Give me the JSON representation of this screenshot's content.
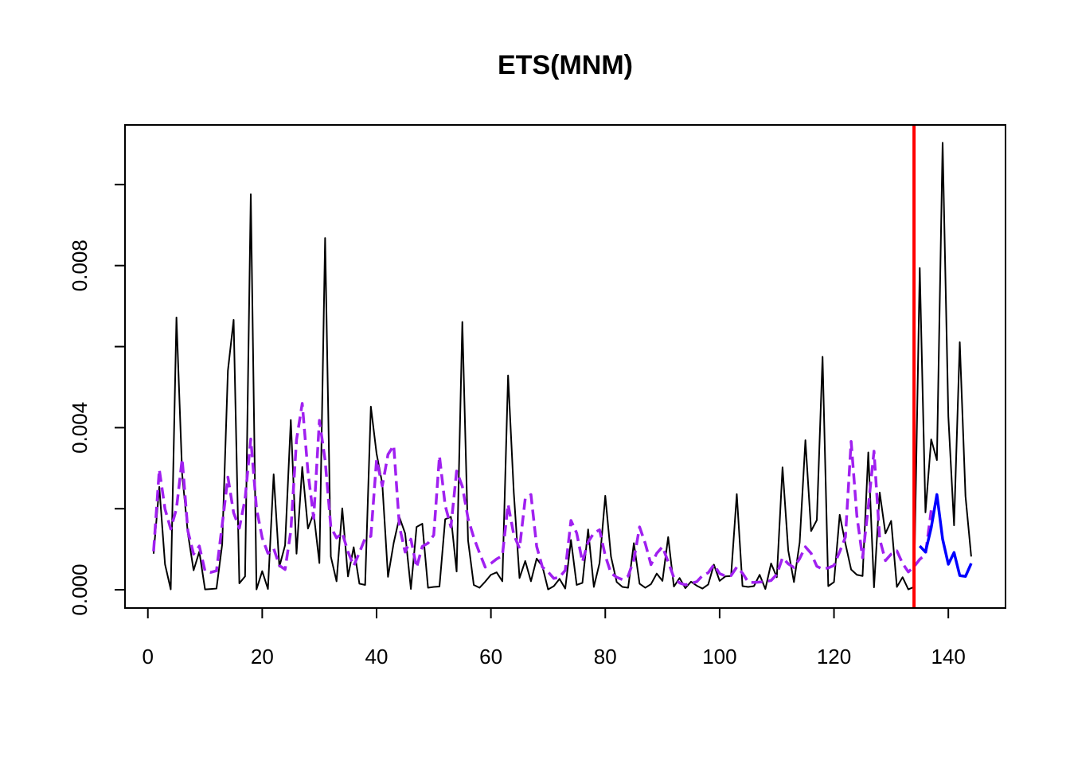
{
  "chart_data": {
    "type": "line",
    "title": "ETS(MNM)",
    "xlabel": "",
    "ylabel": "",
    "xlim": [
      -4,
      150
    ],
    "ylim": [
      -0.00045,
      0.01147
    ],
    "x_ticks": [
      0,
      20,
      40,
      60,
      80,
      100,
      120,
      140
    ],
    "x_tick_labels": [
      "0",
      "20",
      "40",
      "60",
      "80",
      "100",
      "120",
      "140"
    ],
    "y_ticks": [
      0,
      0.002,
      0.004,
      0.006,
      0.008,
      0.01
    ],
    "y_tick_labels": [
      "0.000",
      "",
      "0.004",
      "",
      "0.008",
      ""
    ],
    "grid": false,
    "legend": "none",
    "vline": {
      "x": 134,
      "color": "#ff0000"
    },
    "series": [
      {
        "role": "actuals",
        "color": "#000000",
        "style": "solid",
        "x_start": 1,
        "values": [
          0.00089,
          0.00254,
          0.00063,
          1e-05,
          0.00672,
          0.00285,
          0.00139,
          0.00048,
          0.00094,
          1e-05,
          2e-05,
          3e-05,
          0.00112,
          0.00541,
          0.00666,
          0.00016,
          0.00033,
          0.00976,
          1e-05,
          0.00046,
          2e-05,
          0.00285,
          0.00057,
          0.0011,
          0.00419,
          0.00089,
          0.00303,
          0.00151,
          0.00189,
          0.00066,
          0.00868,
          0.00082,
          0.00021,
          0.00201,
          0.00033,
          0.00105,
          0.00015,
          0.00012,
          0.00452,
          0.00336,
          0.00262,
          0.00032,
          0.00116,
          0.00179,
          0.00139,
          2e-05,
          0.00155,
          0.00163,
          5e-05,
          7e-05,
          8e-05,
          0.00174,
          0.0018,
          0.00045,
          0.00661,
          0.00122,
          0.00012,
          5e-05,
          0.0002,
          0.00037,
          0.00043,
          0.00021,
          0.00529,
          0.0024,
          0.00029,
          0.00071,
          0.00021,
          0.00077,
          0.00058,
          1e-05,
          9e-05,
          0.00027,
          3e-05,
          0.00123,
          0.00012,
          0.00017,
          0.00149,
          7e-05,
          0.00066,
          0.00232,
          0.00082,
          0.00019,
          7e-05,
          5e-05,
          0.00115,
          0.00015,
          5e-05,
          0.00014,
          0.0004,
          0.00022,
          0.0013,
          8e-05,
          0.00029,
          4e-05,
          0.0002,
          0.0001,
          3e-05,
          0.00013,
          0.00062,
          0.00022,
          0.00033,
          0.00034,
          0.00236,
          9e-05,
          7e-05,
          9e-05,
          0.00037,
          2e-05,
          0.00065,
          0.00031,
          0.00302,
          0.00097,
          0.00019,
          0.00117,
          0.00369,
          0.00145,
          0.00172,
          0.00575,
          9e-05,
          0.00019,
          0.00185,
          0.00114,
          0.0005,
          0.00037,
          0.00034,
          0.00339,
          6e-05,
          0.0024,
          0.00139,
          0.0017,
          7e-05,
          0.00031,
          1e-05,
          7e-05,
          0.00794,
          0.00191,
          0.00371,
          0.0032,
          0.01103,
          0.00428,
          0.00159,
          0.00611,
          0.00231,
          0.00082
        ]
      },
      {
        "role": "fitted",
        "color": "#a020f0",
        "style": "dashed",
        "x_start": 1,
        "values": [
          0.00095,
          0.00297,
          0.00199,
          0.0015,
          0.002,
          0.00323,
          0.00145,
          0.00088,
          0.00108,
          0.00046,
          0.00043,
          0.00047,
          0.0016,
          0.00278,
          0.0019,
          0.00152,
          0.00224,
          0.00372,
          0.00201,
          0.00128,
          0.0009,
          0.00102,
          0.0006,
          0.0005,
          0.00145,
          0.0037,
          0.0046,
          0.00291,
          0.00176,
          0.00418,
          0.0032,
          0.00155,
          0.00128,
          0.0014,
          0.00094,
          0.00059,
          0.00092,
          0.00127,
          0.00132,
          0.00321,
          0.00256,
          0.00334,
          0.00356,
          0.00156,
          0.00093,
          0.00125,
          0.00055,
          0.00107,
          0.00115,
          0.00135,
          0.0033,
          0.00208,
          0.00155,
          0.00293,
          0.00255,
          0.00176,
          0.00129,
          0.00091,
          0.00056,
          0.00065,
          0.00076,
          0.00084,
          0.00211,
          0.00136,
          0.00102,
          0.00225,
          0.00235,
          0.00107,
          0.00056,
          0.00044,
          0.00028,
          0.00031,
          0.00048,
          0.00171,
          0.0014,
          0.00069,
          0.00118,
          0.0014,
          0.00148,
          0.00084,
          0.00041,
          0.00031,
          0.00025,
          0.00034,
          0.00074,
          0.00155,
          0.00114,
          0.00062,
          0.0009,
          0.00106,
          0.00069,
          0.0003,
          0.00017,
          0.00012,
          0.00016,
          0.0002,
          0.00035,
          0.00042,
          0.00062,
          0.0004,
          0.00034,
          0.00035,
          0.00056,
          0.00041,
          0.00019,
          0.00018,
          0.00019,
          0.0002,
          0.00023,
          0.00038,
          0.00079,
          0.00064,
          0.00055,
          0.00077,
          0.00106,
          0.0009,
          0.00058,
          0.00051,
          0.00054,
          0.0006,
          0.00094,
          0.0013,
          0.00366,
          0.00183,
          0.00079,
          0.00205,
          0.00342,
          0.00125,
          0.00072,
          0.00088,
          0.00096,
          0.00065,
          0.00044,
          0.00057,
          0.00075,
          0.00087,
          0.00196
        ]
      },
      {
        "role": "forecast",
        "color": "#0000ff",
        "style": "solid",
        "x_start": 135,
        "values": [
          0.00108,
          0.00093,
          0.00153,
          0.00235,
          0.00125,
          0.00063,
          0.00092,
          0.00035,
          0.00033,
          0.00065
        ]
      }
    ]
  }
}
